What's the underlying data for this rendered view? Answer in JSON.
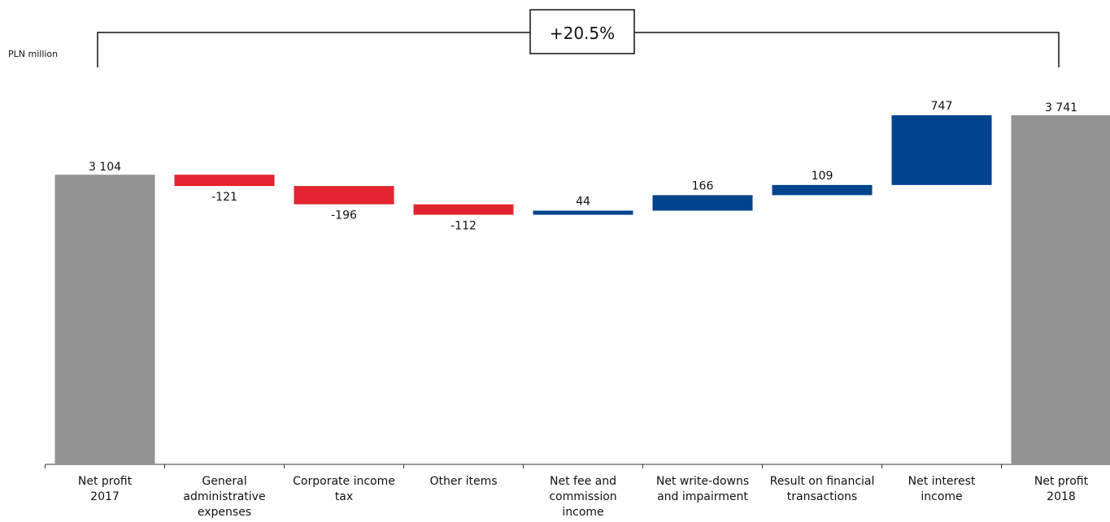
{
  "chart_data": {
    "type": "waterfall",
    "unit_label": "PLN million",
    "change_label": "+20.5%",
    "categories": [
      [
        "Net profit",
        "2017"
      ],
      [
        "General",
        "administrative",
        "expenses"
      ],
      [
        "Corporate income",
        "tax"
      ],
      [
        "Other items"
      ],
      [
        "Net fee and",
        "commission",
        "income"
      ],
      [
        "Net write-downs",
        "and impairment"
      ],
      [
        "Result on financial",
        "transactions"
      ],
      [
        "Net interest",
        "income"
      ],
      [
        "Net profit",
        "2018"
      ]
    ],
    "values": [
      3104,
      -121,
      -196,
      -112,
      44,
      166,
      109,
      747,
      3741
    ],
    "value_labels": [
      "3 104",
      "-121",
      "-196",
      "-112",
      "44",
      "166",
      "109",
      "747",
      "3 741"
    ],
    "kinds": [
      "total",
      "delta",
      "delta",
      "delta",
      "delta",
      "delta",
      "delta",
      "delta",
      "total"
    ],
    "colors": {
      "total": "#939393",
      "decrease": "#e3232f",
      "increase": "#00448e"
    }
  }
}
